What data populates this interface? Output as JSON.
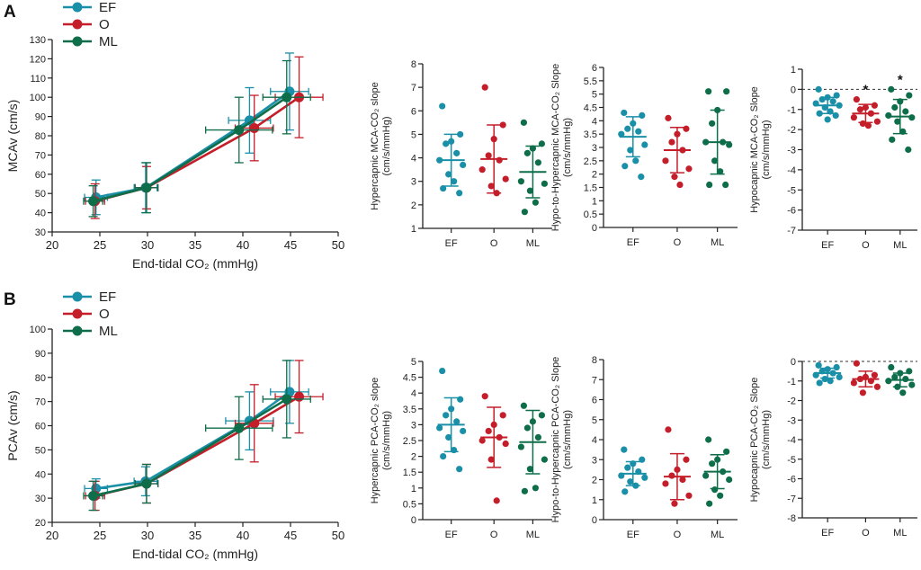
{
  "figure": {
    "panel_labels": [
      "A",
      "B"
    ],
    "colors": {
      "EF": "#1a8fa8",
      "O": "#c41e2a",
      "ML": "#0f6e4a",
      "axis": "#222222",
      "ref": "#333333"
    }
  },
  "chart_data": [
    {
      "id": "A-line",
      "type": "line",
      "xlabel": "End-tidal CO₂ (mmHg)",
      "ylabel": "MCAv (cm/s)",
      "xlim": [
        20,
        50
      ],
      "ylim": [
        30,
        130
      ],
      "xticks": [
        20,
        25,
        30,
        35,
        40,
        45,
        50
      ],
      "yticks": [
        30,
        40,
        50,
        60,
        70,
        80,
        90,
        100,
        110,
        120,
        130
      ],
      "legend": [
        "EF",
        "O",
        "ML"
      ],
      "series": [
        {
          "name": "EF",
          "x": [
            24.6,
            29.8,
            40.7,
            44.9
          ],
          "y": [
            48,
            53,
            88,
            103
          ],
          "xerr": [
            1.2,
            1.2,
            2.2,
            2.0
          ],
          "yerr": [
            9,
            13,
            17,
            20
          ]
        },
        {
          "name": "O",
          "x": [
            24.5,
            29.9,
            41.2,
            45.9
          ],
          "y": [
            46,
            53,
            84,
            100
          ],
          "xerr": [
            1.0,
            1.2,
            2.0,
            2.5
          ],
          "yerr": [
            9,
            11,
            17,
            21
          ]
        },
        {
          "name": "ML",
          "x": [
            24.3,
            29.9,
            39.6,
            44.6
          ],
          "y": [
            46,
            53,
            83,
            100
          ],
          "xerr": [
            1.0,
            1.2,
            3.5,
            2.5
          ],
          "yerr": [
            8,
            13,
            17,
            19
          ]
        }
      ]
    },
    {
      "id": "A-dot1",
      "type": "scatter",
      "ylabel": "Hypercapnic MCA-CO₂ slope (cm/s/mmHg)",
      "ylim": [
        1,
        8
      ],
      "yticks": [
        1,
        2,
        3,
        4,
        5,
        6,
        7,
        8
      ],
      "categories": [
        "EF",
        "O",
        "ML"
      ],
      "ref_line": null,
      "groups": [
        {
          "name": "EF",
          "points": [
            6.2,
            5.0,
            4.7,
            4.6,
            4.2,
            3.9,
            3.7,
            3.3,
            3.0,
            2.7,
            2.5
          ],
          "mean": 3.9,
          "sd": 1.1,
          "marker": ""
        },
        {
          "name": "O",
          "points": [
            7.0,
            5.4,
            4.8,
            4.1,
            3.9,
            3.5,
            3.1,
            2.8,
            2.5
          ],
          "mean": 3.95,
          "sd": 1.45,
          "marker": ""
        },
        {
          "name": "ML",
          "points": [
            5.5,
            4.6,
            4.4,
            4.2,
            3.8,
            3.0,
            2.9,
            2.6,
            2.1,
            1.7
          ],
          "mean": 3.4,
          "sd": 1.1,
          "marker": ""
        }
      ]
    },
    {
      "id": "A-dot2",
      "type": "scatter",
      "ylabel": "Hypo-to-Hypercapnic MCA-CO₂ Slope (cm/s/mmHg)",
      "ylim": [
        0,
        6
      ],
      "yticks": [
        0,
        0.5,
        1,
        1.5,
        2,
        2.5,
        3,
        3.5,
        4,
        4.5,
        5,
        5.5,
        6
      ],
      "categories": [
        "EF",
        "O",
        "ML"
      ],
      "ref_line": null,
      "groups": [
        {
          "name": "EF",
          "points": [
            4.3,
            4.2,
            3.9,
            3.7,
            3.6,
            3.5,
            3.1,
            2.9,
            2.5,
            2.3,
            1.9
          ],
          "mean": 3.4,
          "sd": 0.75,
          "marker": ""
        },
        {
          "name": "O",
          "points": [
            4.1,
            3.7,
            3.5,
            3.2,
            2.9,
            2.5,
            2.2,
            1.9,
            1.6
          ],
          "mean": 2.9,
          "sd": 0.85,
          "marker": ""
        },
        {
          "name": "ML",
          "points": [
            5.1,
            5.1,
            4.4,
            3.9,
            3.2,
            3.2,
            3.1,
            2.5,
            2.1,
            1.6,
            1.6
          ],
          "mean": 3.2,
          "sd": 1.2,
          "marker": ""
        }
      ]
    },
    {
      "id": "A-dot3",
      "type": "scatter",
      "ylabel": "Hypocapnic MCA-CO₂ Slope (cm/s/mmHg)",
      "ylim": [
        -7,
        1
      ],
      "yticks": [
        -7,
        -6,
        -5,
        -4,
        -3,
        -2,
        -1,
        0,
        1
      ],
      "categories": [
        "EF",
        "O",
        "ML"
      ],
      "ref_line": 0,
      "groups": [
        {
          "name": "EF",
          "points": [
            0.0,
            -0.3,
            -0.4,
            -0.5,
            -0.6,
            -0.7,
            -0.8,
            -0.9,
            -1.1,
            -1.2,
            -1.3,
            -1.5
          ],
          "mean": -0.8,
          "sd": 0.4,
          "marker": ""
        },
        {
          "name": "O",
          "points": [
            -0.5,
            -0.8,
            -0.9,
            -1.0,
            -1.2,
            -1.4,
            -1.6,
            -1.7,
            -1.8
          ],
          "mean": -1.2,
          "sd": 0.45,
          "marker": "*"
        },
        {
          "name": "ML",
          "points": [
            0.0,
            -0.3,
            -0.6,
            -0.9,
            -1.1,
            -1.3,
            -1.4,
            -1.6,
            -2.1,
            -2.5,
            -3.0
          ],
          "mean": -1.35,
          "sd": 0.85,
          "marker": "*"
        }
      ]
    },
    {
      "id": "B-line",
      "type": "line",
      "xlabel": "End-tidal CO₂ (mmHg)",
      "ylabel": "PCAv (cm/s)",
      "xlim": [
        20,
        50
      ],
      "ylim": [
        20,
        100
      ],
      "xticks": [
        20,
        25,
        30,
        35,
        40,
        45,
        50
      ],
      "yticks": [
        20,
        30,
        40,
        50,
        60,
        70,
        80,
        90,
        100
      ],
      "legend": [
        "EF",
        "O",
        "ML"
      ],
      "series": [
        {
          "name": "EF",
          "x": [
            24.6,
            29.8,
            40.7,
            44.9
          ],
          "y": [
            34,
            37,
            62,
            74
          ],
          "xerr": [
            1.2,
            1.2,
            2.5,
            2.0
          ],
          "yerr": [
            4,
            6,
            12,
            13
          ]
        },
        {
          "name": "O",
          "x": [
            24.5,
            29.9,
            41.2,
            45.9
          ],
          "y": [
            31,
            36,
            61,
            72
          ],
          "xerr": [
            1.0,
            1.2,
            2.0,
            2.5
          ],
          "yerr": [
            6,
            8,
            16,
            15
          ]
        },
        {
          "name": "ML",
          "x": [
            24.3,
            29.9,
            39.6,
            44.6
          ],
          "y": [
            31,
            36,
            59,
            71
          ],
          "xerr": [
            1.0,
            1.2,
            3.5,
            2.5
          ],
          "yerr": [
            6,
            8,
            13,
            16
          ]
        }
      ]
    },
    {
      "id": "B-dot1",
      "type": "scatter",
      "ylabel": "Hypercapnic PCA-CO₂ slope (cm/s/mmHg)",
      "ylim": [
        0,
        5
      ],
      "yticks": [
        0,
        0.5,
        1,
        1.5,
        2,
        2.5,
        3,
        3.5,
        4,
        4.5,
        5
      ],
      "categories": [
        "EF",
        "O",
        "ML"
      ],
      "ref_line": null,
      "groups": [
        {
          "name": "EF",
          "points": [
            4.7,
            3.8,
            3.5,
            3.3,
            3.1,
            2.9,
            2.8,
            2.6,
            2.2,
            2.0,
            1.6
          ],
          "mean": 3.0,
          "sd": 0.85,
          "marker": ""
        },
        {
          "name": "O",
          "points": [
            3.9,
            3.3,
            3.0,
            2.8,
            2.6,
            2.5,
            2.4,
            1.9,
            0.6
          ],
          "mean": 2.6,
          "sd": 0.95,
          "marker": ""
        },
        {
          "name": "ML",
          "points": [
            3.6,
            3.3,
            3.1,
            2.9,
            2.6,
            2.3,
            1.9,
            1.6,
            1.0,
            0.9
          ],
          "mean": 2.45,
          "sd": 1.0,
          "marker": ""
        }
      ]
    },
    {
      "id": "B-dot2",
      "type": "scatter",
      "ylabel": "Hypo-to-Hypercapnic PCA-CO₂ Slope (cm/s/mmHg)",
      "ylim": [
        0,
        8
      ],
      "yticks": [
        0,
        1,
        2,
        3,
        4,
        5,
        6,
        7,
        8
      ],
      "categories": [
        "EF",
        "O",
        "ML"
      ],
      "ref_line": null,
      "groups": [
        {
          "name": "EF",
          "points": [
            3.5,
            3.0,
            2.8,
            2.6,
            2.4,
            2.2,
            2.1,
            1.9,
            1.7,
            1.4
          ],
          "mean": 2.3,
          "sd": 0.6,
          "marker": ""
        },
        {
          "name": "O",
          "points": [
            4.5,
            3.0,
            2.5,
            2.2,
            2.0,
            1.8,
            1.2,
            0.8
          ],
          "mean": 2.15,
          "sd": 1.15,
          "marker": ""
        },
        {
          "name": "ML",
          "points": [
            4.0,
            3.4,
            3.0,
            2.8,
            2.4,
            2.2,
            2.0,
            1.5,
            1.2,
            0.8
          ],
          "mean": 2.4,
          "sd": 0.85,
          "marker": ""
        }
      ]
    },
    {
      "id": "B-dot3",
      "type": "scatter",
      "ylabel": "Hypocapnic PCA-CO₂ Slope (cm/s/mmHg)",
      "ylim": [
        -8,
        0
      ],
      "yticks": [
        -8,
        -7,
        -6,
        -5,
        -4,
        -3,
        -2,
        -1,
        0
      ],
      "categories": [
        "EF",
        "O",
        "ML"
      ],
      "ref_line": 0,
      "groups": [
        {
          "name": "EF",
          "points": [
            -0.2,
            -0.3,
            -0.4,
            -0.5,
            -0.6,
            -0.7,
            -0.8,
            -0.9,
            -1.0,
            -1.1
          ],
          "mean": -0.6,
          "sd": 0.25,
          "marker": ""
        },
        {
          "name": "O",
          "points": [
            -0.1,
            -0.7,
            -0.8,
            -0.9,
            -1.0,
            -1.1,
            -1.3,
            -1.6
          ],
          "mean": -0.9,
          "sd": 0.4,
          "marker": ""
        },
        {
          "name": "ML",
          "points": [
            -0.3,
            -0.5,
            -0.6,
            -0.8,
            -0.9,
            -1.0,
            -1.2,
            -1.3,
            -1.6
          ],
          "mean": -0.95,
          "sd": 0.35,
          "marker": ""
        }
      ]
    }
  ]
}
